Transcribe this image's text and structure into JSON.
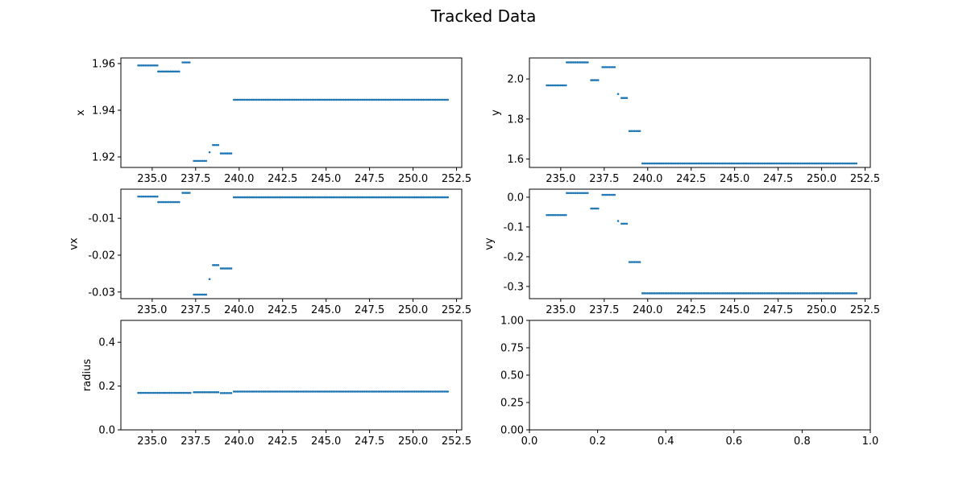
{
  "figure": {
    "title": "Tracked Data"
  },
  "chart_data": [
    {
      "type": "scatter",
      "panel": "top-left",
      "xlabel": "",
      "ylabel": "x",
      "xlim": [
        233.2,
        252.8
      ],
      "ylim": [
        1.9155,
        1.9624
      ],
      "xticks": [
        "235.0",
        "237.5",
        "240.0",
        "242.5",
        "245.0",
        "247.5",
        "250.0",
        "252.5"
      ],
      "yticks": [
        "1.92",
        "1.94",
        "1.96"
      ],
      "color": "#1f77b4",
      "segments": [
        {
          "x_start": 234.2,
          "x_end": 235.25,
          "y": 1.9592
        },
        {
          "x_start": 235.35,
          "x_end": 236.55,
          "y": 1.9566
        },
        {
          "x_start": 236.75,
          "x_end": 237.2,
          "y": 1.9605
        },
        {
          "x_start": 237.4,
          "x_end": 238.1,
          "y": 1.9183
        },
        {
          "x_start": 238.3,
          "x_end": 238.3,
          "y": 1.922
        },
        {
          "x_start": 238.5,
          "x_end": 238.8,
          "y": 1.9251
        },
        {
          "x_start": 238.95,
          "x_end": 239.55,
          "y": 1.9215
        },
        {
          "x_start": 239.7,
          "x_end": 251.95,
          "y": 1.9445
        }
      ]
    },
    {
      "type": "scatter",
      "panel": "top-right",
      "xlabel": "",
      "ylabel": "y",
      "xlim": [
        233.2,
        252.8
      ],
      "ylim": [
        1.558,
        2.105
      ],
      "xticks": [
        "235.0",
        "237.5",
        "240.0",
        "242.5",
        "245.0",
        "247.5",
        "250.0",
        "252.5"
      ],
      "yticks": [
        "1.6",
        "1.8",
        "2.0"
      ],
      "color": "#1f77b4",
      "segments": [
        {
          "x_start": 234.2,
          "x_end": 235.25,
          "y": 1.968
        },
        {
          "x_start": 235.35,
          "x_end": 236.55,
          "y": 2.083
        },
        {
          "x_start": 236.75,
          "x_end": 237.2,
          "y": 1.994
        },
        {
          "x_start": 237.4,
          "x_end": 238.1,
          "y": 2.059
        },
        {
          "x_start": 238.3,
          "x_end": 238.3,
          "y": 1.925
        },
        {
          "x_start": 238.5,
          "x_end": 238.8,
          "y": 1.905
        },
        {
          "x_start": 238.95,
          "x_end": 239.55,
          "y": 1.74
        },
        {
          "x_start": 239.7,
          "x_end": 251.95,
          "y": 1.578
        }
      ]
    },
    {
      "type": "scatter",
      "panel": "middle-left",
      "xlabel": "",
      "ylabel": "vx",
      "xlim": [
        233.2,
        252.8
      ],
      "ylim": [
        -0.0318,
        -0.0021
      ],
      "xticks": [
        "235.0",
        "237.5",
        "240.0",
        "242.5",
        "245.0",
        "247.5",
        "250.0",
        "252.5"
      ],
      "yticks": [
        "-0.03",
        "-0.02",
        "-0.01"
      ],
      "color": "#1f77b4",
      "segments": [
        {
          "x_start": 234.2,
          "x_end": 235.25,
          "y": -0.0041
        },
        {
          "x_start": 235.35,
          "x_end": 236.55,
          "y": -0.0056
        },
        {
          "x_start": 236.75,
          "x_end": 237.2,
          "y": -0.0031
        },
        {
          "x_start": 237.4,
          "x_end": 238.1,
          "y": -0.0307
        },
        {
          "x_start": 238.3,
          "x_end": 238.3,
          "y": -0.0265
        },
        {
          "x_start": 238.5,
          "x_end": 238.8,
          "y": -0.0227
        },
        {
          "x_start": 238.95,
          "x_end": 239.55,
          "y": -0.0236
        },
        {
          "x_start": 239.7,
          "x_end": 251.95,
          "y": -0.0043
        }
      ]
    },
    {
      "type": "scatter",
      "panel": "middle-right",
      "xlabel": "",
      "ylabel": "vy",
      "xlim": [
        233.2,
        252.8
      ],
      "ylim": [
        -0.341,
        0.027
      ],
      "xticks": [
        "235.0",
        "237.5",
        "240.0",
        "242.5",
        "245.0",
        "247.5",
        "250.0",
        "252.5"
      ],
      "yticks": [
        "-0.3",
        "-0.2",
        "-0.1",
        "0.0"
      ],
      "color": "#1f77b4",
      "segments": [
        {
          "x_start": 234.2,
          "x_end": 235.25,
          "y": -0.06
        },
        {
          "x_start": 235.35,
          "x_end": 236.55,
          "y": 0.014
        },
        {
          "x_start": 236.75,
          "x_end": 237.2,
          "y": -0.038
        },
        {
          "x_start": 237.4,
          "x_end": 238.1,
          "y": 0.008
        },
        {
          "x_start": 238.3,
          "x_end": 238.3,
          "y": -0.08
        },
        {
          "x_start": 238.5,
          "x_end": 238.8,
          "y": -0.089
        },
        {
          "x_start": 238.95,
          "x_end": 239.55,
          "y": -0.218
        },
        {
          "x_start": 239.7,
          "x_end": 251.95,
          "y": -0.323
        }
      ]
    },
    {
      "type": "scatter",
      "panel": "bottom-left",
      "xlabel": "",
      "ylabel": "radius",
      "xlim": [
        233.2,
        252.8
      ],
      "ylim": [
        0.0,
        0.5
      ],
      "xticks": [
        "235.0",
        "237.5",
        "240.0",
        "242.5",
        "245.0",
        "247.5",
        "250.0",
        "252.5"
      ],
      "yticks": [
        "0.0",
        "0.2",
        "0.4"
      ],
      "color": "#1f77b4",
      "segments": [
        {
          "x_start": 234.2,
          "x_end": 237.2,
          "y": 0.169
        },
        {
          "x_start": 237.4,
          "x_end": 238.8,
          "y": 0.172
        },
        {
          "x_start": 238.95,
          "x_end": 239.55,
          "y": 0.168
        },
        {
          "x_start": 239.7,
          "x_end": 251.95,
          "y": 0.175
        }
      ]
    },
    {
      "type": "scatter",
      "panel": "bottom-right",
      "xlabel": "",
      "ylabel": "",
      "xlim": [
        0.0,
        1.0
      ],
      "ylim": [
        0.0,
        1.0
      ],
      "xticks": [
        "0.0",
        "0.2",
        "0.4",
        "0.6",
        "0.8",
        "1.0"
      ],
      "yticks": [
        "0.00",
        "0.25",
        "0.50",
        "0.75",
        "1.00"
      ],
      "color": "#1f77b4",
      "segments": []
    }
  ]
}
